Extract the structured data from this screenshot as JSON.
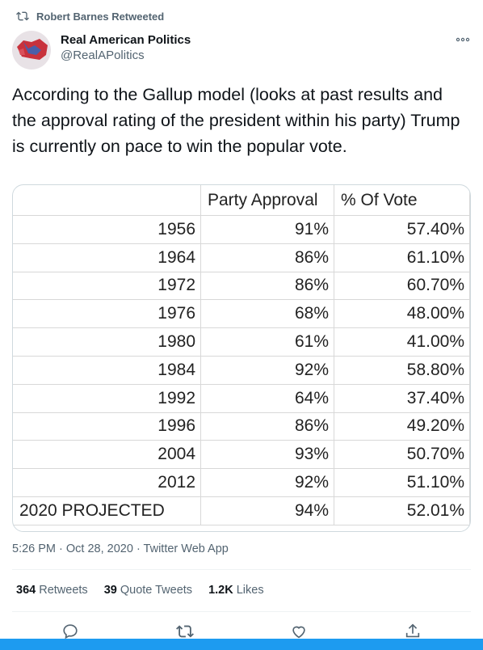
{
  "retweet": {
    "label": "Robert Barnes Retweeted"
  },
  "author": {
    "name": "Real American Politics",
    "handle": "@RealAPolitics"
  },
  "tweet": {
    "text": "According to the Gallup model (looks at past results and the approval rating of the president within his party) Trump is currently on pace to win the popular vote."
  },
  "table": {
    "headers": [
      "",
      "Party Approval",
      "% Of Vote"
    ],
    "rows": [
      [
        "1956",
        "91%",
        "57.40%"
      ],
      [
        "1964",
        "86%",
        "61.10%"
      ],
      [
        "1972",
        "86%",
        "60.70%"
      ],
      [
        "1976",
        "68%",
        "48.00%"
      ],
      [
        "1980",
        "61%",
        "41.00%"
      ],
      [
        "1984",
        "92%",
        "58.80%"
      ],
      [
        "1992",
        "64%",
        "37.40%"
      ],
      [
        "1996",
        "86%",
        "49.20%"
      ],
      [
        "2004",
        "93%",
        "50.70%"
      ],
      [
        "2012",
        "92%",
        "51.10%"
      ],
      [
        "2020 PROJECTED",
        "94%",
        "52.01%"
      ]
    ]
  },
  "meta": {
    "timestamp": "5:26 PM · Oct 28, 2020 · Twitter Web App"
  },
  "stats": {
    "retweets_count": "364",
    "retweets_label": "Retweets",
    "quotes_count": "39",
    "quotes_label": "Quote Tweets",
    "likes_count": "1.2K",
    "likes_label": "Likes"
  },
  "icons": {
    "more": "more-icon",
    "retweet": "retweet-icon",
    "reply": "reply-icon",
    "like": "like-icon",
    "share": "share-icon"
  },
  "colors": {
    "accent": "#1d9bf0",
    "secondary_text": "#536471"
  }
}
